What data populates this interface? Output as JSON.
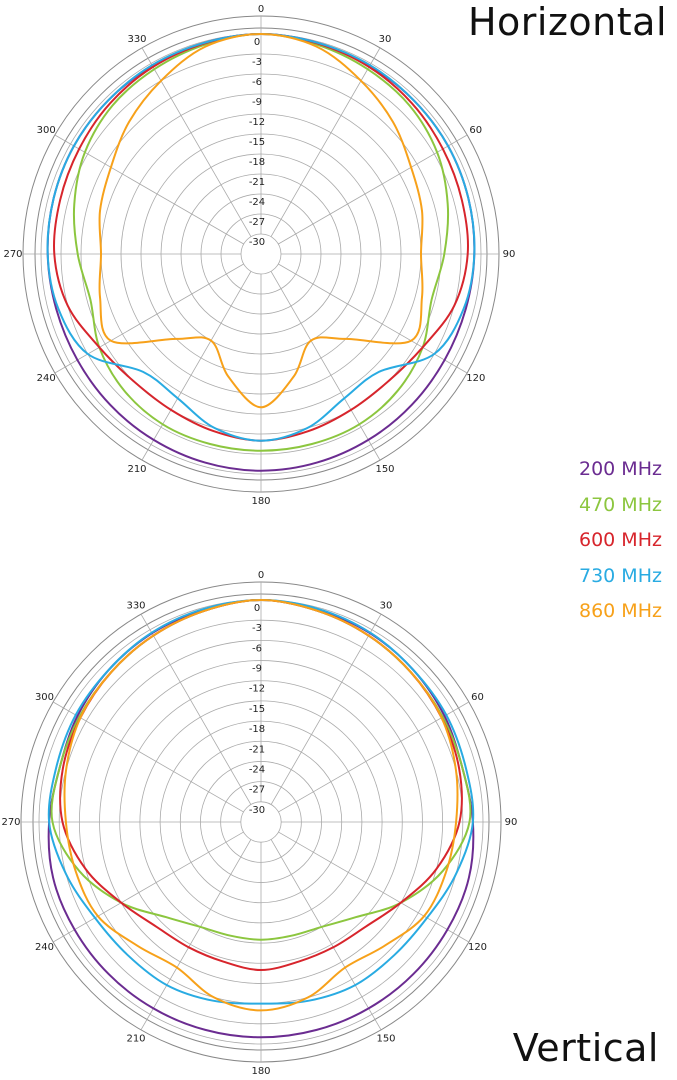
{
  "chart_data": [
    {
      "type": "polar",
      "title": "Horizontal",
      "angle_ticks": [
        "0",
        "30",
        "60",
        "90",
        "120",
        "150",
        "180",
        "210",
        "240",
        "270",
        "300",
        "330"
      ],
      "radial_ticks": [
        "0",
        "-3",
        "-6",
        "-9",
        "-12",
        "-15",
        "-18",
        "-21",
        "-24",
        "-27",
        "-30"
      ],
      "rlim_db": [
        -33,
        0
      ],
      "grid": true,
      "series": [
        {
          "name": "200 MHz",
          "color": "#6b2c91",
          "angles": [
            0,
            15,
            30,
            45,
            60,
            75,
            90,
            105,
            120,
            135,
            150,
            165,
            180,
            195,
            210,
            225,
            240,
            255,
            270,
            285,
            300,
            315,
            330,
            345
          ],
          "values": [
            0,
            -0.2,
            -0.4,
            -0.5,
            -0.6,
            -0.8,
            -1,
            -1.2,
            -1.2,
            -1,
            -0.8,
            -0.6,
            -0.5,
            -0.6,
            -0.8,
            -1,
            -1.2,
            -1.2,
            -1,
            -0.8,
            -0.6,
            -0.5,
            -0.4,
            -0.2
          ]
        },
        {
          "name": "470 MHz",
          "color": "#8cc63f",
          "angles": [
            0,
            15,
            30,
            45,
            60,
            75,
            90,
            105,
            120,
            135,
            150,
            165,
            180,
            195,
            210,
            225,
            240,
            255,
            270,
            285,
            300,
            315,
            330,
            345
          ],
          "values": [
            0,
            -0.5,
            -1,
            -1.5,
            -2.5,
            -4,
            -5.5,
            -6.5,
            -5,
            -4,
            -3.5,
            -3.5,
            -3.5,
            -3.5,
            -3.5,
            -4,
            -5,
            -6.5,
            -5.5,
            -4,
            -2.5,
            -1.5,
            -1,
            -0.5
          ]
        },
        {
          "name": "600 MHz",
          "color": "#d7252c",
          "angles": [
            0,
            15,
            30,
            45,
            60,
            75,
            90,
            105,
            120,
            135,
            150,
            165,
            180,
            195,
            210,
            225,
            240,
            255,
            270,
            285,
            300,
            315,
            330,
            345
          ],
          "values": [
            0,
            -0.3,
            -0.6,
            -1,
            -1.5,
            -1.8,
            -2,
            -3,
            -5,
            -6,
            -6,
            -5.5,
            -5,
            -5.5,
            -6,
            -6,
            -5,
            -3,
            -2,
            -1.8,
            -1.5,
            -1,
            -0.6,
            -0.3
          ]
        },
        {
          "name": "730 MHz",
          "color": "#29abe2",
          "angles": [
            0,
            15,
            30,
            45,
            60,
            75,
            90,
            105,
            120,
            135,
            150,
            165,
            180,
            195,
            210,
            225,
            240,
            255,
            270,
            285,
            300,
            315,
            330,
            345
          ],
          "values": [
            0,
            -0.2,
            -0.3,
            -0.5,
            -0.6,
            -0.8,
            -1,
            -1.5,
            -3,
            -8,
            -8,
            -6,
            -5,
            -6,
            -8,
            -8,
            -3,
            -1.5,
            -1,
            -0.8,
            -0.6,
            -0.5,
            -0.3,
            -0.2
          ]
        },
        {
          "name": "860 MHz",
          "color": "#f7a11a",
          "angles": [
            0,
            15,
            30,
            45,
            60,
            75,
            90,
            105,
            120,
            135,
            150,
            165,
            180,
            195,
            210,
            225,
            240,
            255,
            270,
            285,
            300,
            315,
            330,
            345
          ],
          "values": [
            0,
            -0.8,
            -3,
            -5,
            -7,
            -8,
            -9,
            -8,
            -7,
            -15,
            -18,
            -14,
            -10,
            -14,
            -18,
            -15,
            -7,
            -8,
            -9,
            -8,
            -7,
            -5,
            -3,
            -0.8
          ]
        }
      ]
    },
    {
      "type": "polar",
      "title": "Vertical",
      "angle_ticks": [
        "0",
        "30",
        "60",
        "90",
        "120",
        "150",
        "180",
        "210",
        "240",
        "270",
        "300",
        "330"
      ],
      "radial_ticks": [
        "0",
        "-3",
        "-6",
        "-9",
        "-12",
        "-15",
        "-18",
        "-21",
        "-24",
        "-27",
        "-30"
      ],
      "rlim_db": [
        -33,
        0
      ],
      "grid": true,
      "series": [
        {
          "name": "200 MHz",
          "color": "#6b2c91",
          "angles": [
            0,
            15,
            30,
            45,
            60,
            75,
            90,
            105,
            120,
            135,
            150,
            165,
            180,
            195,
            210,
            225,
            240,
            255,
            270,
            285,
            300,
            315,
            330,
            345
          ],
          "values": [
            0,
            -0.3,
            -0.6,
            -1,
            -1.5,
            -2,
            -1.5,
            -1,
            -1,
            -1,
            -1,
            -1,
            -1,
            -1,
            -1,
            -1,
            -1,
            -1,
            -1.5,
            -2,
            -1.5,
            -1,
            -0.6,
            -0.3
          ]
        },
        {
          "name": "470 MHz",
          "color": "#8cc63f",
          "angles": [
            0,
            15,
            30,
            45,
            60,
            75,
            90,
            105,
            120,
            135,
            150,
            165,
            180,
            195,
            210,
            225,
            240,
            255,
            270,
            285,
            300,
            315,
            330,
            345
          ],
          "values": [
            0,
            -0.5,
            -1,
            -1.5,
            -1.8,
            -2,
            -2,
            -5,
            -9,
            -13,
            -15,
            -15.5,
            -15.5,
            -15.5,
            -15,
            -13,
            -9,
            -5,
            -2,
            -2,
            -1.8,
            -1.5,
            -1,
            -0.5
          ]
        },
        {
          "name": "600 MHz",
          "color": "#d7252c",
          "angles": [
            0,
            15,
            30,
            45,
            60,
            75,
            90,
            105,
            120,
            135,
            150,
            165,
            180,
            195,
            210,
            225,
            240,
            255,
            270,
            285,
            300,
            315,
            330,
            345
          ],
          "values": [
            0,
            -0.5,
            -1,
            -1.5,
            -2,
            -2.5,
            -3.5,
            -6,
            -9,
            -11,
            -11.5,
            -11.5,
            -11,
            -11.5,
            -11.5,
            -11,
            -9,
            -6,
            -3.5,
            -2.5,
            -2,
            -1.5,
            -1,
            -0.5
          ]
        },
        {
          "name": "730 MHz",
          "color": "#29abe2",
          "angles": [
            0,
            15,
            30,
            45,
            60,
            75,
            90,
            105,
            120,
            135,
            150,
            165,
            180,
            195,
            210,
            225,
            240,
            255,
            270,
            285,
            300,
            315,
            330,
            345
          ],
          "values": [
            0,
            -0.2,
            -0.5,
            -1,
            -1.2,
            -1.5,
            -1.5,
            -3,
            -4.5,
            -5,
            -5,
            -5.5,
            -6,
            -5.5,
            -5,
            -5,
            -4.5,
            -3,
            -1.5,
            -1.5,
            -1.2,
            -1,
            -0.5,
            -0.2
          ]
        },
        {
          "name": "860 MHz",
          "color": "#f7a11a",
          "angles": [
            0,
            15,
            30,
            45,
            60,
            75,
            90,
            105,
            120,
            135,
            150,
            165,
            180,
            195,
            210,
            225,
            240,
            255,
            270,
            285,
            300,
            315,
            330,
            345
          ],
          "values": [
            0,
            -0.5,
            -1,
            -1.5,
            -2,
            -3,
            -4,
            -4.5,
            -5,
            -7,
            -8,
            -6,
            -5,
            -6,
            -8,
            -7,
            -5,
            -4.5,
            -4,
            -3,
            -2,
            -1.5,
            -1,
            -0.5
          ]
        }
      ]
    }
  ]
}
